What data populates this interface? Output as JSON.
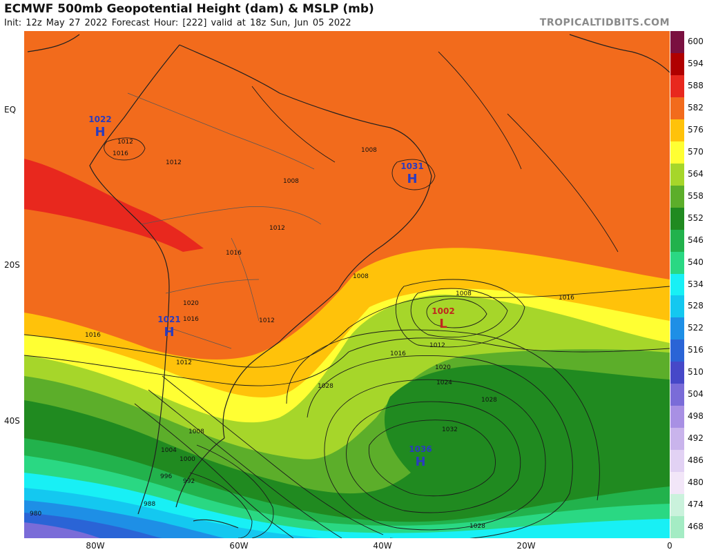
{
  "header": {
    "title": "ECMWF 500mb Geopotential Height (dam) & MSLP (mb)",
    "subtitle": "Init: 12z May 27 2022   Forecast Hour: [222]   valid at 18z Sun, Jun 05 2022",
    "credit": "TROPICALTIDBITS.COM"
  },
  "axes": {
    "lat": [
      "EQ",
      "20S",
      "40S"
    ],
    "lon": [
      "80W",
      "60W",
      "40W",
      "20W",
      "0"
    ]
  },
  "colorbar": {
    "levels": [
      "600",
      "594",
      "588",
      "582",
      "576",
      "570",
      "564",
      "558",
      "552",
      "546",
      "540",
      "534",
      "528",
      "522",
      "516",
      "510",
      "504",
      "498",
      "492",
      "486",
      "480",
      "474",
      "468"
    ],
    "colors": [
      "#7a1040",
      "#b00000",
      "#e8281e",
      "#f26b1c",
      "#ffc20a",
      "#ffff33",
      "#a6d62a",
      "#5cae2a",
      "#208a20",
      "#22b24c",
      "#2ad883",
      "#18f0f5",
      "#14c8f0",
      "#1e8fe6",
      "#2a64d6",
      "#4648c8",
      "#7a6cd8",
      "#a890e4",
      "#c9b4ec",
      "#e2d2f4",
      "#f2e6f8",
      "#caf2dc",
      "#a4ecc4"
    ]
  },
  "pressure_centers": [
    {
      "type": "H",
      "value": "1022"
    },
    {
      "type": "H",
      "value": "1031"
    },
    {
      "type": "L",
      "value": "1002"
    },
    {
      "type": "H",
      "value": "1021"
    },
    {
      "type": "H",
      "value": "1036"
    }
  ],
  "isobar_labels": [
    "1012",
    "1012",
    "1016",
    "1008",
    "1012",
    "1008",
    "1016",
    "1008",
    "1008",
    "1016",
    "1012",
    "1020",
    "1024",
    "1028",
    "1028",
    "1032",
    "1016",
    "1016",
    "1012",
    "1028",
    "1008",
    "1004",
    "1000",
    "996",
    "992",
    "988",
    "980",
    "1020",
    "1016",
    "1012"
  ]
}
